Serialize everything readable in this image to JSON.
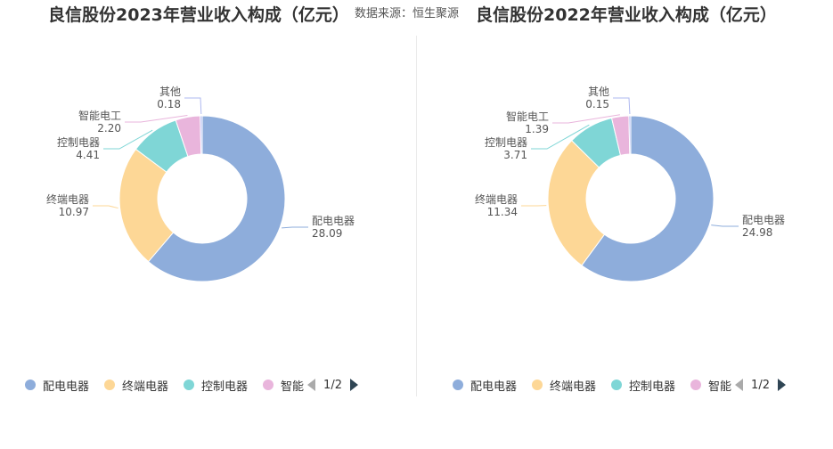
{
  "source_label": "数据来源：恒生聚源",
  "colors": {
    "配电电器": "#8eaddb",
    "终端电器": "#fdd796",
    "控制电器": "#7fd6d6",
    "智能电工": "#e9b5dc",
    "其他": "#aeb8f0"
  },
  "chart_data": [
    {
      "type": "pie",
      "title": "良信股份2023年营业收入构成（亿元）",
      "slices": [
        {
          "name": "配电电器",
          "value": 28.09
        },
        {
          "name": "终端电器",
          "value": 10.97
        },
        {
          "name": "控制电器",
          "value": 4.41
        },
        {
          "name": "智能电工",
          "value": 2.2
        },
        {
          "name": "其他",
          "value": 0.18
        }
      ],
      "legend": {
        "items": [
          "配电电器",
          "终端电器",
          "控制电器",
          "智能"
        ],
        "page": "1/2",
        "placement": "bottom"
      }
    },
    {
      "type": "pie",
      "title": "良信股份2022年营业收入构成（亿元）",
      "slices": [
        {
          "name": "配电电器",
          "value": 24.98
        },
        {
          "name": "终端电器",
          "value": 11.34
        },
        {
          "name": "控制电器",
          "value": 3.71
        },
        {
          "name": "智能电工",
          "value": 1.39
        },
        {
          "name": "其他",
          "value": 0.15
        }
      ],
      "legend": {
        "items": [
          "配电电器",
          "终端电器",
          "控制电器",
          "智能"
        ],
        "page": "1/2",
        "placement": "bottom"
      }
    }
  ]
}
